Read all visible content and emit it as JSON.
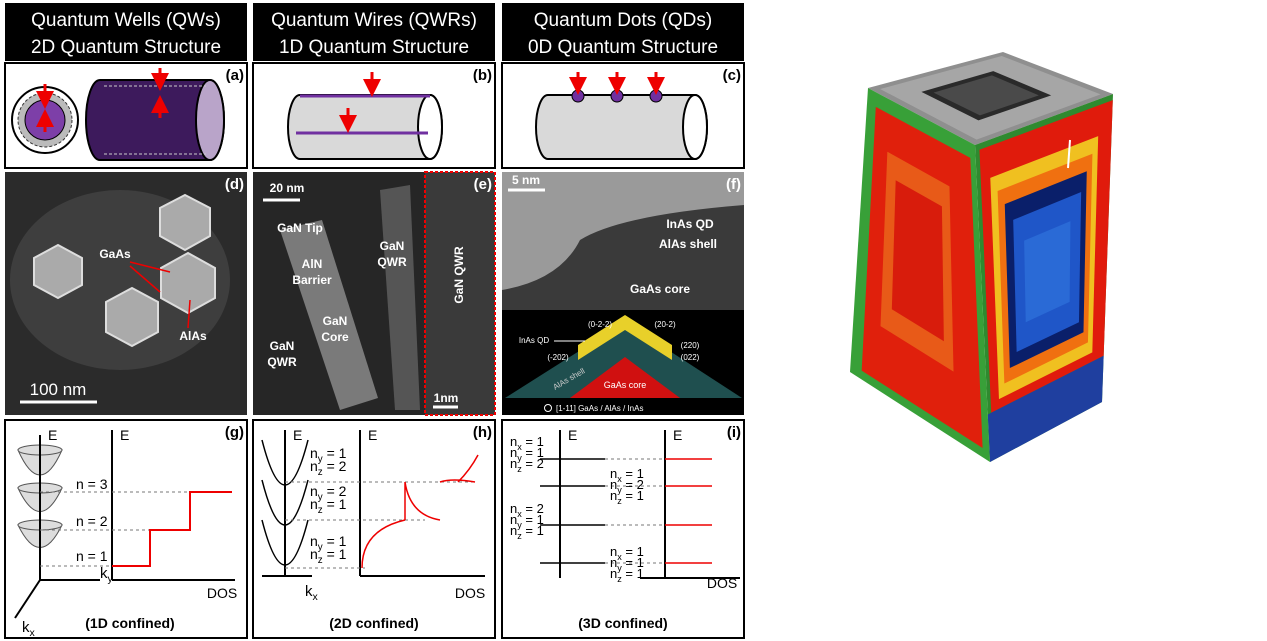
{
  "headers": [
    {
      "line1": "Quantum Wells (QWs)",
      "line2": "2D Quantum Structure"
    },
    {
      "line1": "Quantum Wires (QWRs)",
      "line2": "1D Quantum Structure"
    },
    {
      "line1": "Quantum Dots (QDs)",
      "line2": "0D Quantum Structure"
    }
  ],
  "panel_labels": [
    "(a)",
    "(b)",
    "(c)",
    "(d)",
    "(e)",
    "(f)",
    "(g)",
    "(h)",
    "(i)"
  ],
  "d": {
    "gaas": "GaAs",
    "alas": "AlAs",
    "scale": "100  nm"
  },
  "e": {
    "scale": "20 nm",
    "tip": "GaN Tip",
    "barrier": [
      "AlN",
      "Barrier"
    ],
    "qwr_right": [
      "GaN",
      "QWR"
    ],
    "core": [
      "GaN",
      "Core"
    ],
    "qwr_left": [
      "GaN",
      "QWR"
    ],
    "qwr_vertical": "GaN QWR",
    "scale_hr": "1nm"
  },
  "f": {
    "scale": "5 nm",
    "inas_qd": "InAs QD",
    "alas_shell": "AlAs shell",
    "gaas_core": "GaAs core",
    "planes": [
      "(0-2-2)",
      "(20-2)",
      "(-202)",
      "(220)",
      "(022)"
    ],
    "model_qd": "InAs QD",
    "model_shell": "AlAs shell",
    "model_core": "GaAs core",
    "direction": "[1-11] GaAs / AlAs / InAs"
  },
  "g": {
    "e_left": "E",
    "e_right": "E",
    "levels": [
      "n = 3",
      "n = 2",
      "n = 1"
    ],
    "ky": [
      "k",
      "y"
    ],
    "kx": [
      "k",
      "x"
    ],
    "dos": "DOS",
    "caption": "(1D confined)"
  },
  "h": {
    "e_left": "E",
    "e_right": "E",
    "levels": [
      [
        [
          "n",
          "y",
          " = 1"
        ],
        [
          "n",
          "z",
          " = 2"
        ]
      ],
      [
        [
          "n",
          "y",
          " = 2"
        ],
        [
          "n",
          "z",
          " = 1"
        ]
      ],
      [
        [
          "n",
          "y",
          " = 1"
        ],
        [
          "n",
          "z",
          " = 1"
        ]
      ]
    ],
    "kx": [
      "k",
      "x"
    ],
    "dos": "DOS",
    "caption": "(2D confined)"
  },
  "i": {
    "e_left": "E",
    "e_right": "E",
    "levels": [
      [
        [
          "n",
          "x",
          " = 1"
        ],
        [
          "n",
          "y",
          " = 1"
        ],
        [
          "n",
          "z",
          " = 2"
        ]
      ],
      [
        [
          "n",
          "x",
          " = 2"
        ],
        [
          "n",
          "y",
          " = 1"
        ],
        [
          "n",
          "z",
          " = 1"
        ]
      ],
      [
        [
          "n",
          "x",
          " = 1"
        ],
        [
          "n",
          "y",
          " = 2"
        ],
        [
          "n",
          "z",
          " = 1"
        ]
      ],
      [
        [
          "n",
          "x",
          " = 1"
        ],
        [
          "n",
          "y",
          " = 1"
        ],
        [
          "n",
          "z",
          " = 1"
        ]
      ]
    ],
    "dos": "DOS",
    "caption": "(3D confined)"
  }
}
